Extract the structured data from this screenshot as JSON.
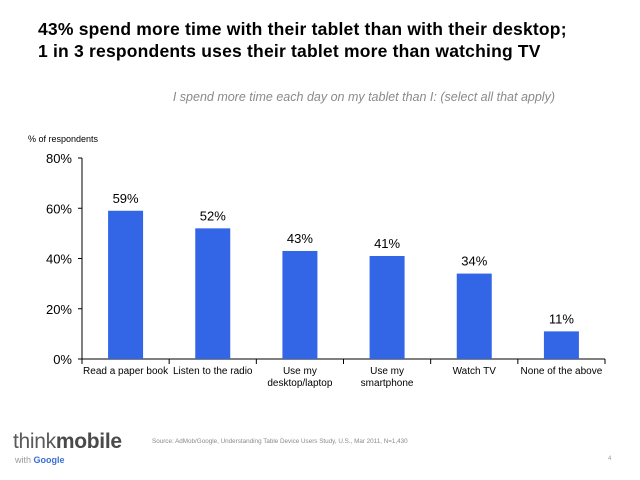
{
  "slide": {
    "title_line1": "43% spend more time with their tablet than with their desktop;",
    "title_line2": "1 in 3 respondents uses their tablet more than watching TV",
    "subtitle": "I spend more time each day on my tablet than I: (select all that apply)"
  },
  "chart_data": {
    "type": "bar",
    "title": "I spend more time each day on my tablet than I: (select all that apply)",
    "ylabel": "% of respondents",
    "xlabel": "",
    "categories": [
      [
        "Read a paper book"
      ],
      [
        "Listen to the radio"
      ],
      [
        "Use my",
        "desktop/laptop"
      ],
      [
        "Use my",
        "smartphone"
      ],
      [
        "Watch TV"
      ],
      [
        "None of the above"
      ]
    ],
    "values": [
      59,
      52,
      43,
      41,
      34,
      11
    ],
    "value_labels": [
      "59%",
      "52%",
      "43%",
      "41%",
      "34%",
      "11%"
    ],
    "ylim": [
      0,
      80
    ],
    "yticks": [
      0,
      20,
      40,
      60,
      80
    ],
    "ytick_labels": [
      "0%",
      "20%",
      "40%",
      "60%",
      "80%"
    ],
    "bar_color": "#3366e6",
    "grid": false
  },
  "footer": {
    "brand_think": "think",
    "brand_mobile": "mobile",
    "brand_with": "with",
    "brand_google": "Google",
    "source": "Source: AdMob/Google, Understanding Table Device Users Study, U.S., Mar 2011, N=1,430",
    "page_number": "4"
  }
}
